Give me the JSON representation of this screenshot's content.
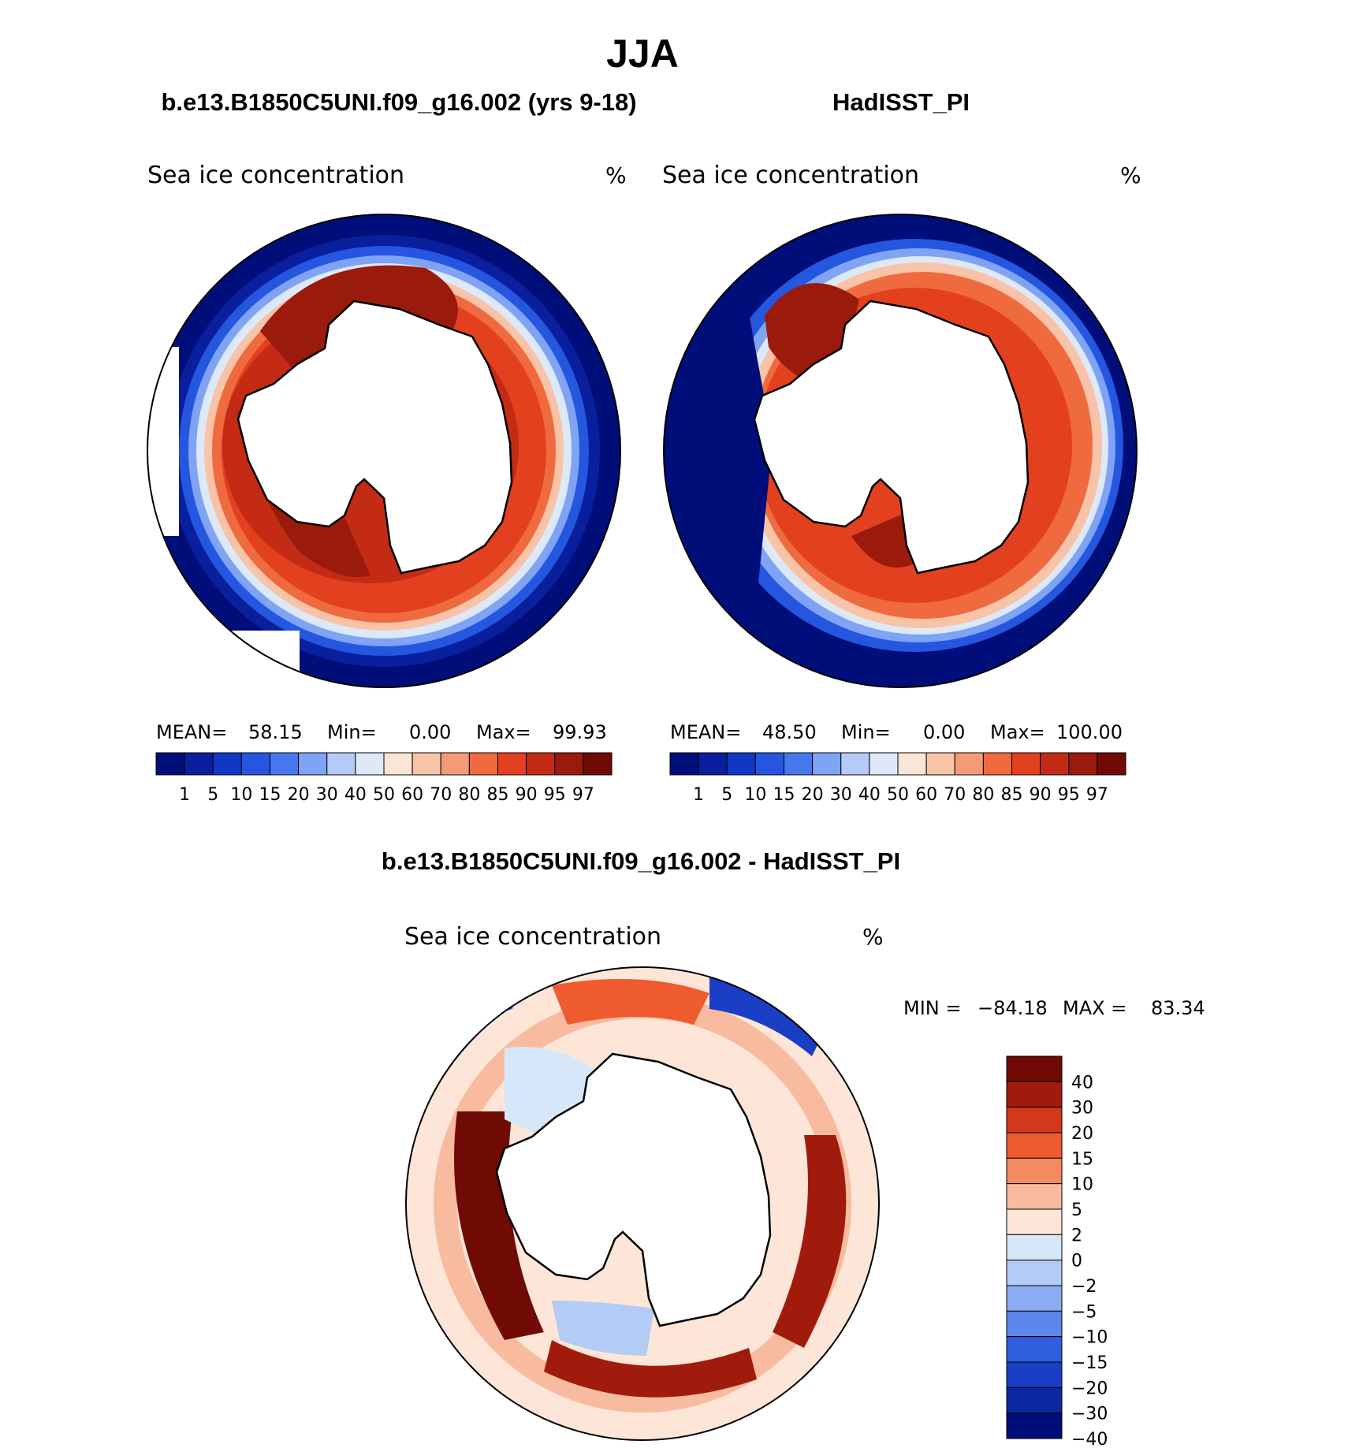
{
  "figure": {
    "season": "JJA",
    "left_title": "b.e13.B1850C5UNI.f09_g16.002 (yrs 9-18)",
    "right_title": "HadISST_PI",
    "diff_title": "b.e13.B1850C5UNI.f09_g16.002 - HadISST_PI"
  },
  "chart_data": [
    {
      "type": "heatmap",
      "projection": "south-polar-stereographic",
      "title": "b.e13.B1850C5UNI.f09_g16.002 (yrs 9-18)",
      "variable": "Sea ice concentration",
      "units": "%",
      "stats": {
        "mean_label": "MEAN=",
        "mean": "58.15",
        "min_label": "Min=",
        "min": "0.00",
        "max_label": "Max=",
        "max": "99.93"
      },
      "colorbar": {
        "levels": [
          "1",
          "5",
          "10",
          "15",
          "20",
          "30",
          "40",
          "50",
          "60",
          "70",
          "80",
          "85",
          "90",
          "95",
          "97"
        ],
        "colors": [
          "#000e7a",
          "#0a1f9e",
          "#1237c4",
          "#2456e0",
          "#4578ef",
          "#7fa3f5",
          "#b5cbf7",
          "#dde9f8",
          "#fbe5d6",
          "#f8c3a6",
          "#f49a77",
          "#ef6a3e",
          "#e34020",
          "#c42b14",
          "#9a1a0c",
          "#6f0a04"
        ]
      }
    },
    {
      "type": "heatmap",
      "projection": "south-polar-stereographic",
      "title": "HadISST_PI",
      "variable": "Sea ice concentration",
      "units": "%",
      "stats": {
        "mean_label": "MEAN=",
        "mean": "48.50",
        "min_label": "Min=",
        "min": "0.00",
        "max_label": "Max=",
        "max": "100.00"
      },
      "colorbar": {
        "levels": [
          "1",
          "5",
          "10",
          "15",
          "20",
          "30",
          "40",
          "50",
          "60",
          "70",
          "80",
          "85",
          "90",
          "95",
          "97"
        ],
        "colors": [
          "#000e7a",
          "#0a1f9e",
          "#1237c4",
          "#2456e0",
          "#4578ef",
          "#7fa3f5",
          "#b5cbf7",
          "#dde9f8",
          "#fbe5d6",
          "#f8c3a6",
          "#f49a77",
          "#ef6a3e",
          "#e34020",
          "#c42b14",
          "#9a1a0c",
          "#6f0a04"
        ]
      }
    },
    {
      "type": "heatmap",
      "projection": "south-polar-stereographic",
      "title": "b.e13.B1850C5UNI.f09_g16.002 - HadISST_PI",
      "variable": "Sea ice concentration",
      "units": "%",
      "stats": {
        "min_label": "MIN =",
        "min": "−84.18",
        "max_label": "MAX =",
        "max": "83.34"
      },
      "colorbar": {
        "levels": [
          "40",
          "30",
          "20",
          "15",
          "10",
          "5",
          "2",
          "0",
          "−2",
          "−5",
          "−10",
          "−15",
          "−20",
          "−30",
          "−40"
        ],
        "colors": [
          "#6f0a04",
          "#a11b0c",
          "#d03a1a",
          "#ee5b2e",
          "#f48a62",
          "#f8bba0",
          "#fde6d8",
          "#d6e7fa",
          "#b3ccf6",
          "#8aacf1",
          "#5b86ea",
          "#2f5fdf",
          "#1a3fc4",
          "#0c27a0",
          "#000e7a"
        ]
      }
    }
  ]
}
